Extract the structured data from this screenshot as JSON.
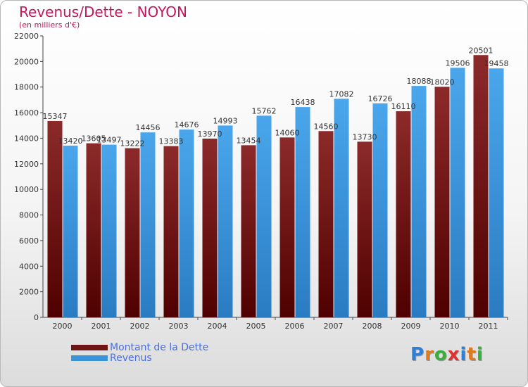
{
  "title": "Revenus/Dette - NOYON",
  "subtitle": "(en milliers d'€)",
  "logo": {
    "letters": [
      "P",
      "r",
      "o",
      "x",
      "i",
      "t",
      "i"
    ],
    "colors": [
      "#2e7fd6",
      "#e07a1e",
      "#3cae3c",
      "#e03030",
      "#2e7fd6",
      "#e07a1e",
      "#3cae3c"
    ]
  },
  "colors": {
    "dette": "#6e1414",
    "revenus": "#3a94dc",
    "tick_text": "#333333",
    "title": "#c2185b",
    "legend_text": "#4a6fe0"
  },
  "chart_data": {
    "type": "bar",
    "categories": [
      "2000",
      "2001",
      "2002",
      "2003",
      "2004",
      "2005",
      "2006",
      "2007",
      "2008",
      "2009",
      "2010",
      "2011"
    ],
    "series": [
      {
        "name": "Montant de la Dette",
        "values": [
          15347,
          13605,
          13222,
          13383,
          13970,
          13454,
          14060,
          14560,
          13730,
          16110,
          18020,
          20501
        ],
        "labels": [
          "15347",
          "13605",
          "13222",
          "13383",
          "13970",
          "13454",
          "14060",
          "14560",
          "13730",
          "16110",
          "18020",
          "20501"
        ]
      },
      {
        "name": "Revenus",
        "values": [
          13420,
          13497,
          14456,
          14676,
          14993,
          15762,
          16438,
          17082,
          16726,
          18088,
          19506,
          19458
        ],
        "labels": [
          "13420",
          "13497",
          "14456",
          "14676",
          "14993",
          "15762",
          "16438",
          "17082",
          "16726",
          "18088",
          "19506",
          "19458"
        ]
      }
    ],
    "yticks": [
      0,
      2000,
      4000,
      6000,
      8000,
      10000,
      12000,
      14000,
      16000,
      18000,
      20000,
      22000
    ],
    "ylim": [
      0,
      22000
    ],
    "grid": false,
    "legend": "bottom-left"
  }
}
